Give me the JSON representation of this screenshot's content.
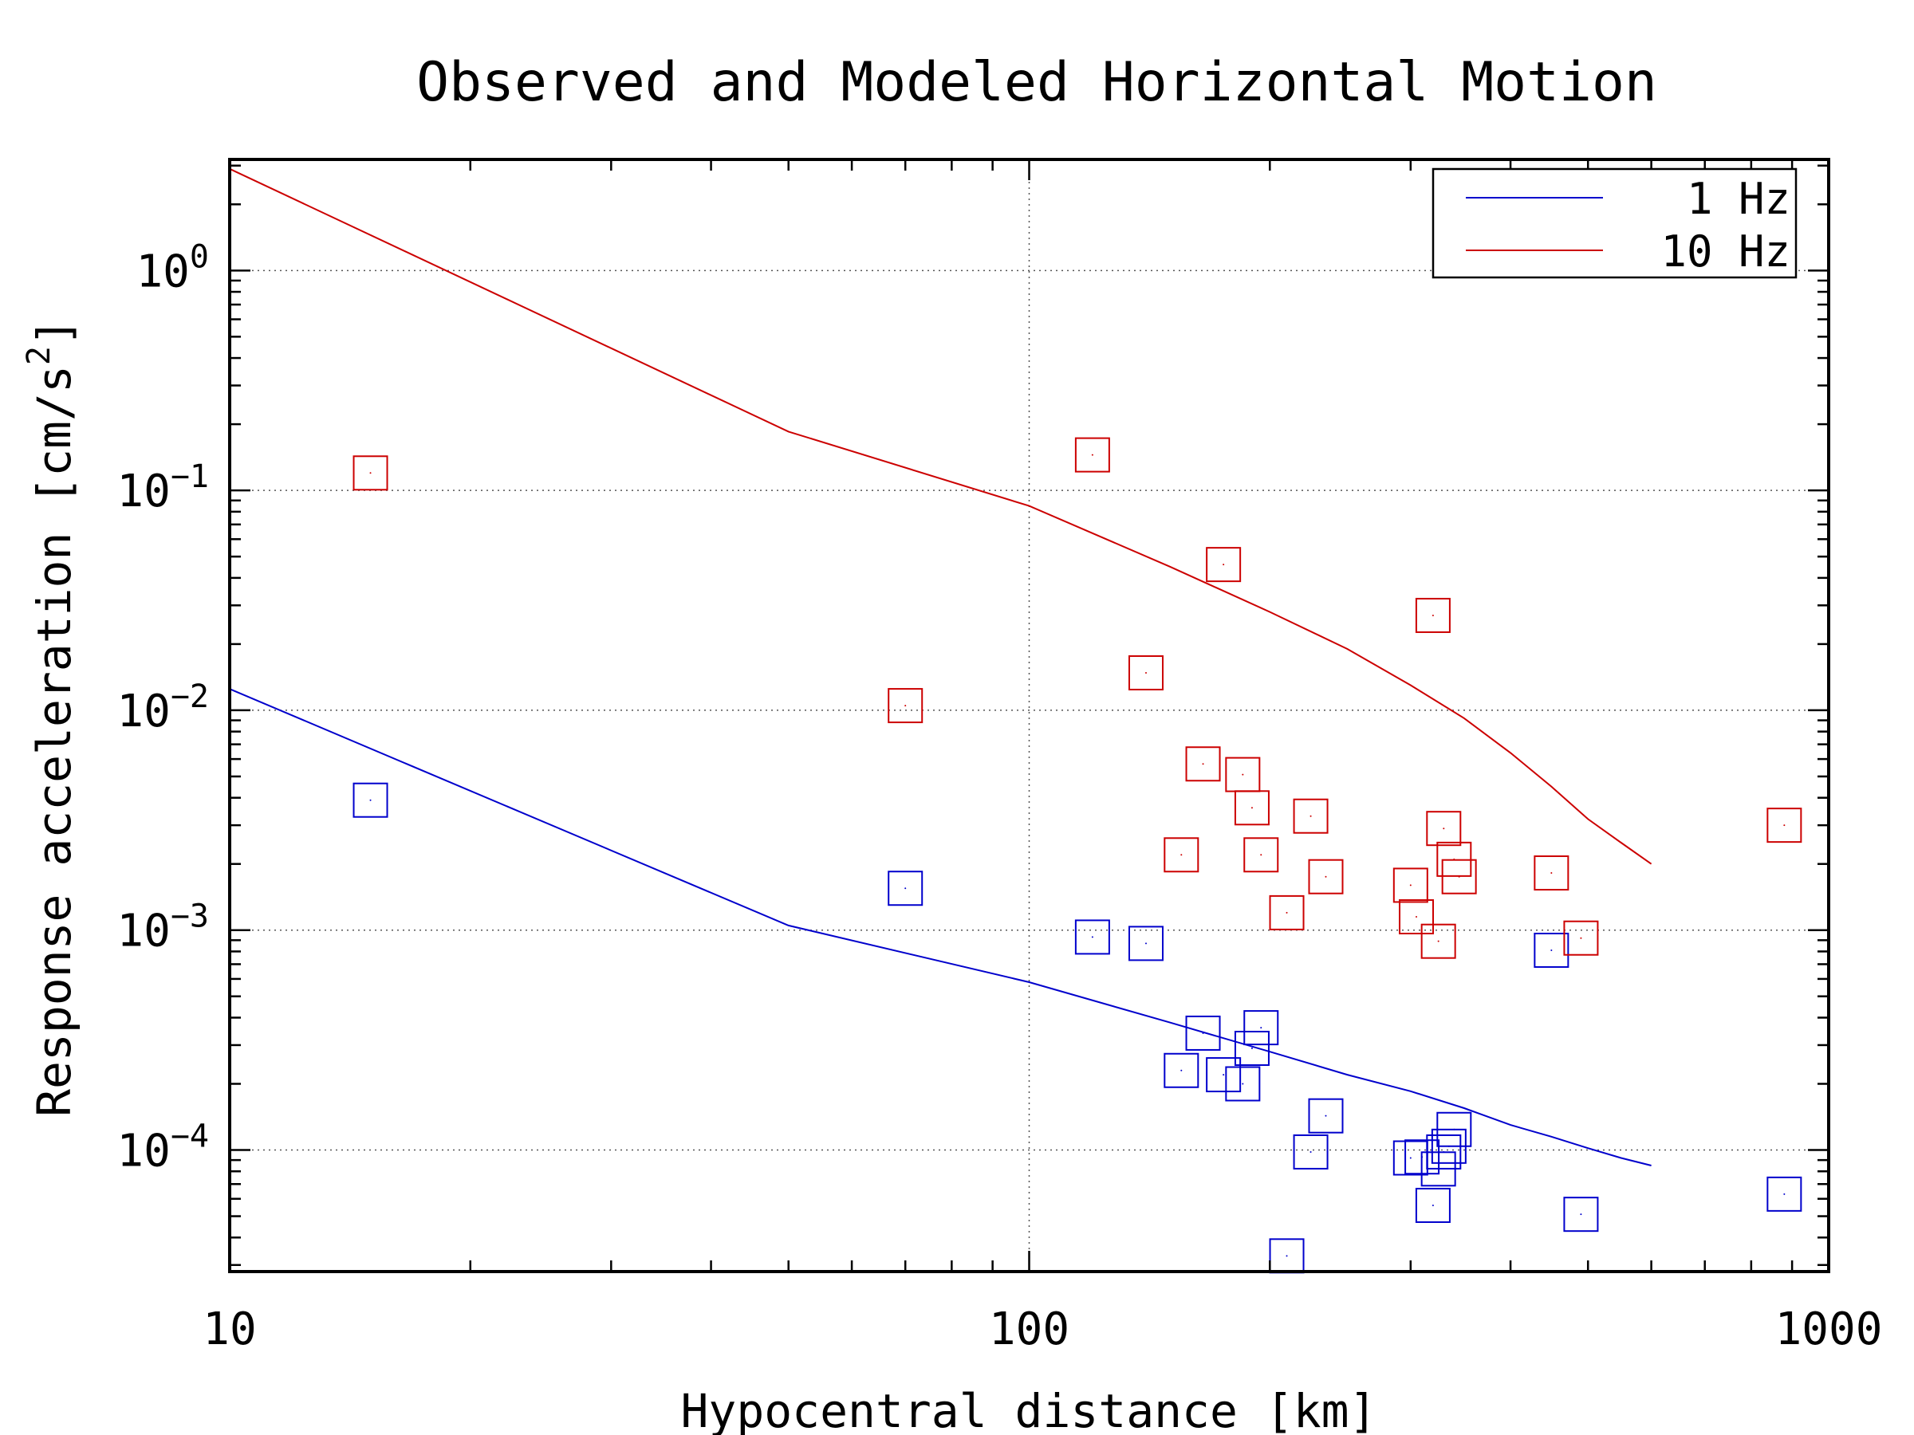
{
  "chart_data": {
    "type": "scatter",
    "title": "Observed and Modeled Horizontal Motion",
    "xlabel": "Hypocentral distance [km]",
    "ylabel": "Response acceleration [cm/s²]",
    "ylabel_base": "Response acceleration [cm/s",
    "ylabel_sup": "2",
    "ylabel_end": "]",
    "x_scale": "log",
    "y_scale": "log",
    "xlim": [
      10,
      1000
    ],
    "ylim": [
      2.8e-05,
      3.2
    ],
    "grid": true,
    "legend_position": "top-right",
    "x_ticks": [
      {
        "value": 10,
        "label": "10"
      },
      {
        "value": 100,
        "label": "100"
      },
      {
        "value": 1000,
        "label": "1000"
      }
    ],
    "y_ticks": [
      {
        "value": 1,
        "base": "10",
        "exp": "0"
      },
      {
        "value": 0.1,
        "base": "10",
        "exp": "−1"
      },
      {
        "value": 0.01,
        "base": "10",
        "exp": "−2"
      },
      {
        "value": 0.001,
        "base": "10",
        "exp": "−3"
      },
      {
        "value": 0.0001,
        "base": "10",
        "exp": "−4"
      }
    ],
    "series": [
      {
        "name": "1 Hz",
        "color": "#0000cc",
        "model": {
          "x": [
            10,
            50,
            100,
            150,
            200,
            250,
            300,
            350,
            400,
            450,
            500,
            550,
            600
          ],
          "y": [
            0.0125,
            0.00105,
            0.00058,
            0.00038,
            0.00028,
            0.00022,
            0.000185,
            0.000155,
            0.00013,
            0.000115,
            0.000102,
            9.2e-05,
            8.5e-05
          ]
        },
        "observed": {
          "x": [
            15,
            70,
            120,
            140,
            155,
            165,
            175,
            185,
            190,
            195,
            210,
            225,
            235,
            300,
            310,
            320,
            325,
            330,
            335,
            340,
            450,
            490,
            880
          ],
          "y": [
            0.0039,
            0.00155,
            0.00093,
            0.00087,
            0.00023,
            0.00034,
            0.00022,
            0.0002,
            0.00029,
            0.00036,
            3.3e-05,
            9.8e-05,
            0.000143,
            9.2e-05,
            9.3e-05,
            5.6e-05,
            8.2e-05,
            9.8e-05,
            0.000104,
            0.000124,
            0.00081,
            5.1e-05,
            6.3e-05
          ]
        }
      },
      {
        "name": "10 Hz",
        "color": "#cc0000",
        "model": {
          "x": [
            10,
            50,
            100,
            150,
            200,
            250,
            300,
            350,
            400,
            450,
            500,
            550,
            600
          ],
          "y": [
            2.9,
            0.185,
            0.085,
            0.045,
            0.028,
            0.019,
            0.013,
            0.0092,
            0.0064,
            0.0045,
            0.0032,
            0.0025,
            0.002
          ]
        },
        "observed": {
          "x": [
            15,
            70,
            120,
            140,
            155,
            165,
            175,
            185,
            190,
            195,
            210,
            225,
            235,
            300,
            305,
            320,
            325,
            330,
            340,
            345,
            450,
            490,
            880
          ],
          "y": [
            0.12,
            0.0105,
            0.145,
            0.0148,
            0.0022,
            0.0057,
            0.046,
            0.0051,
            0.0036,
            0.0022,
            0.0012,
            0.0033,
            0.00175,
            0.0016,
            0.00115,
            0.027,
            0.00089,
            0.0029,
            0.0021,
            0.00175,
            0.00182,
            0.00092,
            0.003
          ]
        }
      }
    ]
  }
}
